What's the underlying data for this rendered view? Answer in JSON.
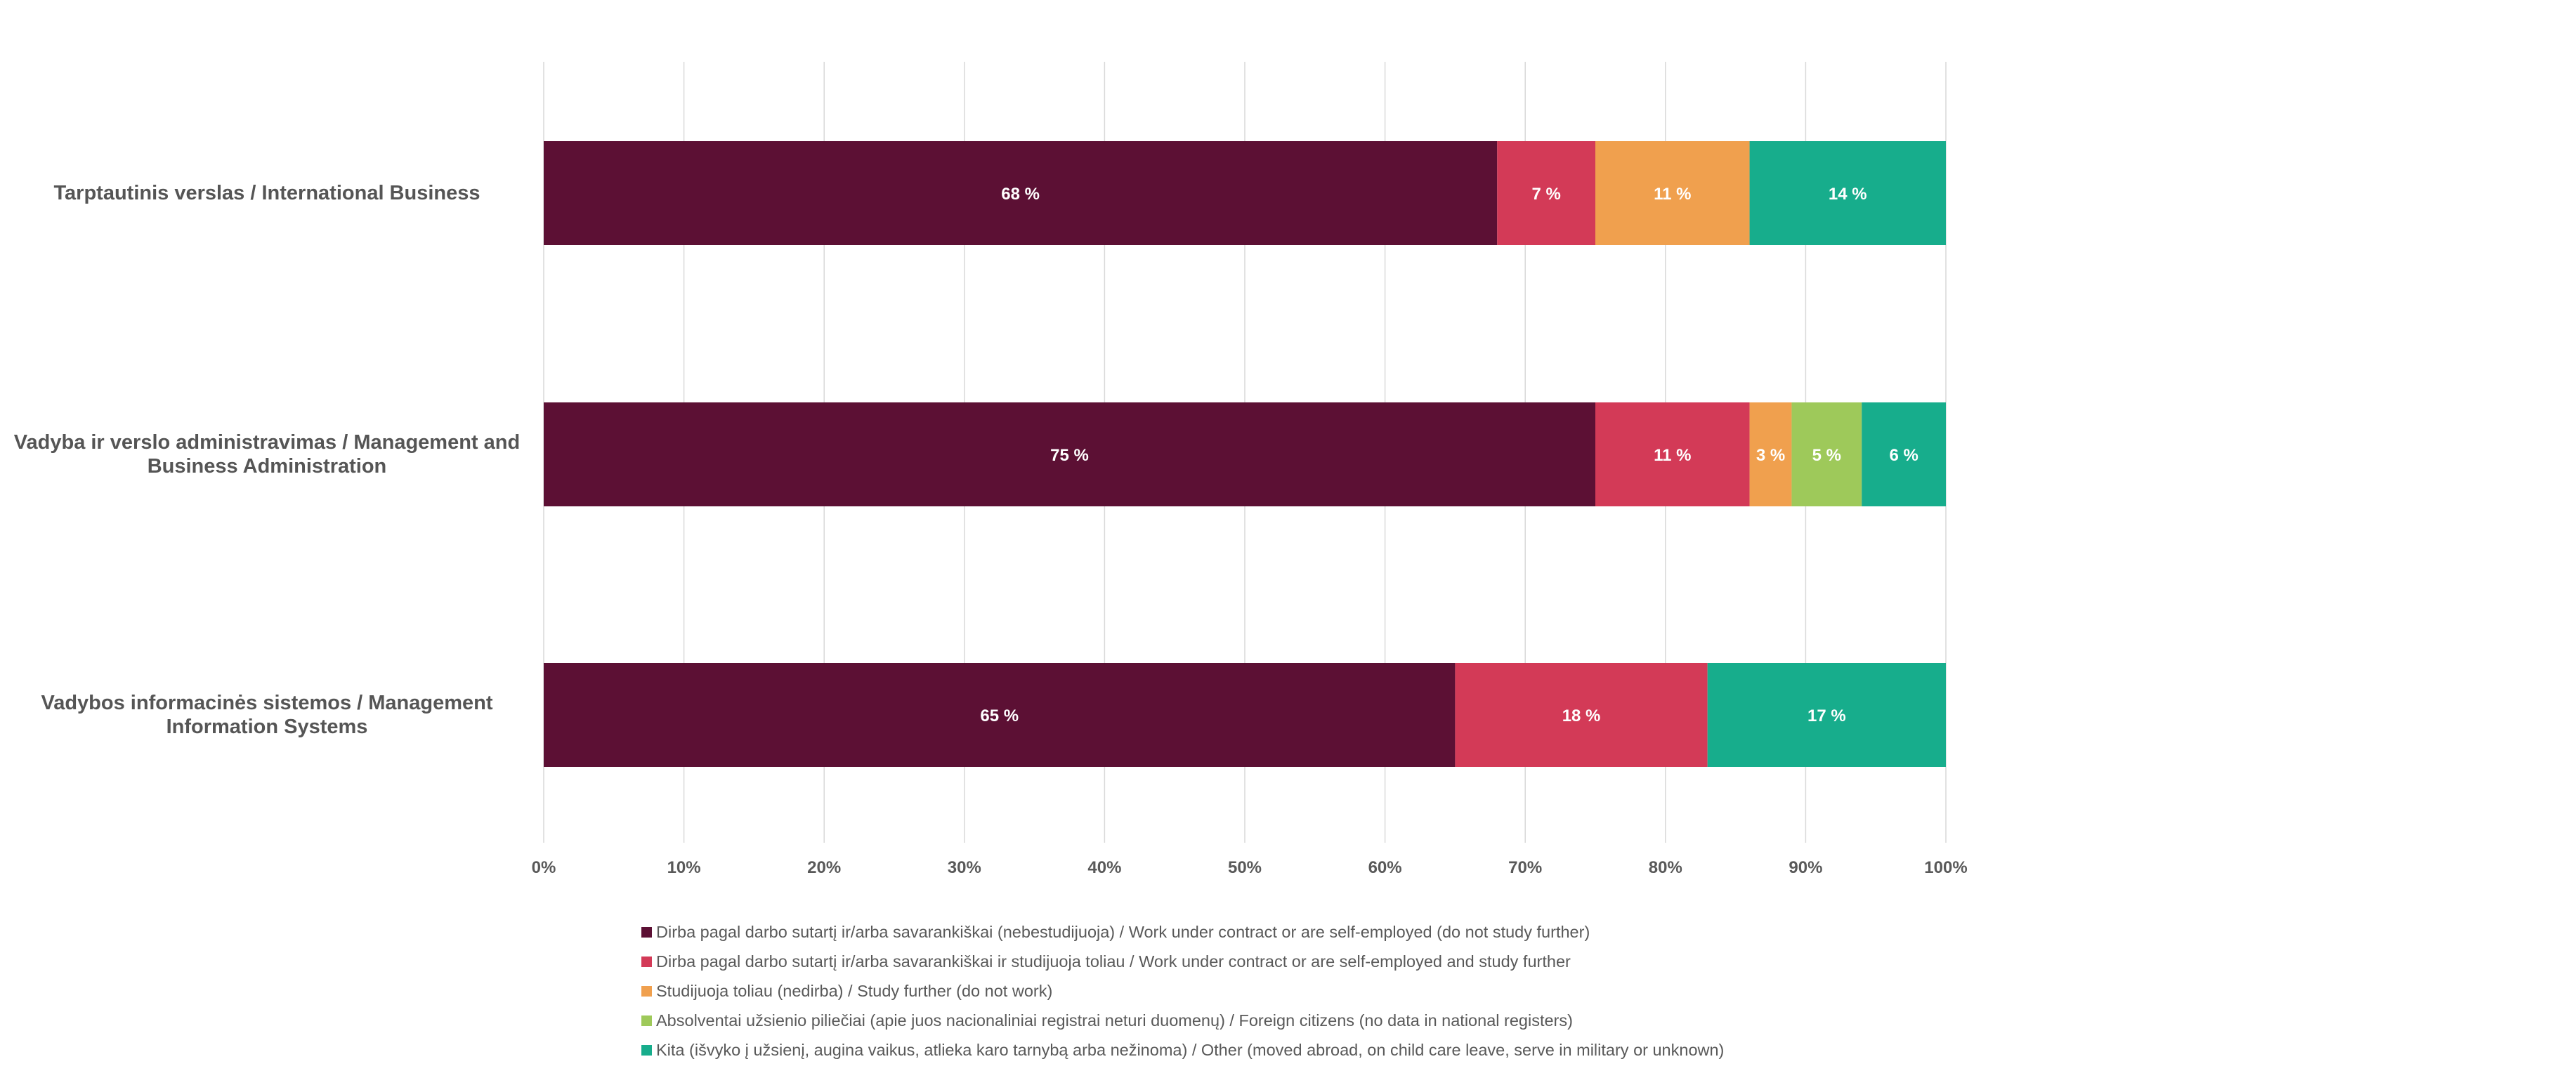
{
  "chart_data": {
    "type": "bar",
    "orientation": "horizontal",
    "stacked": true,
    "categories": [
      "Tarptautinis verslas / International Business",
      "Vadyba ir verslo administravimas / Management and Business Administration",
      "Vadybos informacinės sistemos / Management Information Systems"
    ],
    "series": [
      {
        "name": "Dirba pagal darbo sutartį ir/arba savarankiškai (nebestudijuoja) / Work under contract or are self-employed (do not study further)",
        "color": "#5c1034",
        "values": [
          68,
          75,
          65
        ],
        "labels": [
          "68 %",
          "75 %",
          "65 %"
        ]
      },
      {
        "name": "Dirba pagal darbo sutartį ir/arba savarankiškai  ir studijuoja toliau / Work under contract or are self-employed and study further",
        "color": "#d33a57",
        "values": [
          7,
          11,
          18
        ],
        "labels": [
          "7 %",
          "11 %",
          "18 %"
        ]
      },
      {
        "name": "Studijuoja toliau (nedirba) / Study further (do not work)",
        "color": "#f0a04e",
        "values": [
          11,
          3,
          0
        ],
        "labels": [
          "11 %",
          "3 %",
          ""
        ]
      },
      {
        "name": "Absolventai užsienio piliečiai (apie juos nacionaliniai registrai neturi duomenų) / Foreign citizens (no data in national registers)",
        "color": "#9ec95a",
        "values": [
          0,
          5,
          0
        ],
        "labels": [
          "",
          "5 %",
          ""
        ]
      },
      {
        "name": "Kita (išvyko į užsienį, augina vaikus, atlieka karo tarnybą arba nežinoma) / Other (moved abroad, on child care leave, serve in military or unknown)",
        "color": "#17ad8c",
        "values": [
          14,
          6,
          17
        ],
        "labels": [
          "14 %",
          "6 %",
          "17 %"
        ]
      }
    ],
    "xlim": [
      0,
      100
    ],
    "x_ticks": [
      "0%",
      "10%",
      "20%",
      "30%",
      "40%",
      "50%",
      "60%",
      "70%",
      "80%",
      "90%",
      "100%"
    ],
    "grid": true,
    "legend_position": "bottom",
    "title": "",
    "xlabel": "",
    "ylabel": ""
  }
}
